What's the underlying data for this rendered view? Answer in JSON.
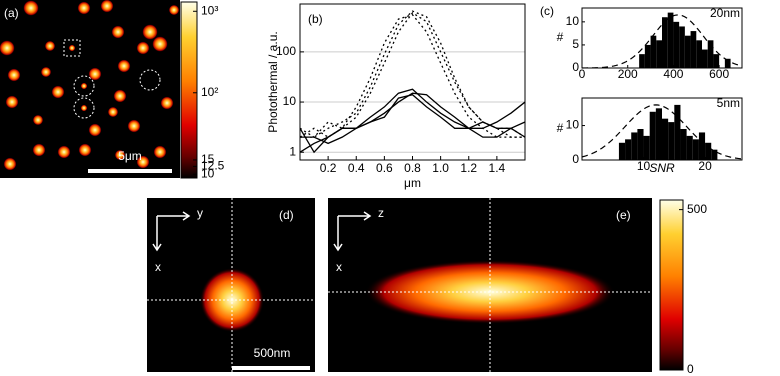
{
  "chart_data": [
    {
      "type": "image",
      "label": "(a)",
      "scalebar_label": "5μm",
      "colorbar": {
        "scale": "log",
        "ylim": [
          9,
          1300
        ],
        "yticks": [
          {
            "value": 1000,
            "label": "10³"
          },
          {
            "value": 100,
            "label": "10²"
          },
          15,
          12.5,
          10
        ]
      }
    },
    {
      "type": "line",
      "label": "(b)",
      "y_label": "Photothermal / a.u.",
      "x_label": "μm",
      "scale": "log",
      "grid": true,
      "x": [
        0,
        0.1,
        0.2,
        0.3,
        0.4,
        0.5,
        0.6,
        0.7,
        0.8,
        0.9,
        1,
        1.1,
        1.2,
        1.3,
        1.4,
        1.5,
        1.6
      ],
      "xlim": [
        0,
        1.6
      ],
      "xticks": [
        0.2,
        0.4,
        0.6,
        0.8,
        {
          "value": 1,
          "label": "1.0"
        },
        1.2,
        1.4
      ],
      "ylim": [
        0.7,
        900
      ],
      "yticks": [
        1,
        10,
        100
      ],
      "series": [
        {
          "style": "dotted",
          "color": "#000000",
          "values": [
            2,
            3,
            2,
            3,
            5,
            15,
            60,
            250,
            600,
            400,
            100,
            25,
            8,
            4,
            3,
            2,
            2
          ]
        },
        {
          "style": "dotted",
          "color": "#000000",
          "values": [
            3,
            2,
            4,
            3,
            8,
            30,
            150,
            450,
            550,
            250,
            60,
            15,
            5,
            3,
            2,
            2,
            2
          ]
        },
        {
          "style": "dotted",
          "color": "#000000",
          "values": [
            2,
            2,
            3,
            4,
            6,
            20,
            90,
            350,
            650,
            500,
            150,
            30,
            8,
            4,
            3,
            3,
            2
          ]
        },
        {
          "style": "solid",
          "color": "#000000",
          "values": [
            3,
            1,
            2,
            3,
            3,
            5,
            8,
            15,
            18,
            10,
            6,
            4,
            3,
            2,
            2,
            3,
            4
          ]
        },
        {
          "style": "solid",
          "color": "#000000",
          "values": [
            2,
            2,
            1.5,
            2,
            3,
            4,
            6,
            10,
            15,
            14,
            8,
            5,
            3,
            4,
            3,
            3,
            2
          ]
        },
        {
          "style": "solid",
          "color": "#000000",
          "values": [
            1,
            1.5,
            2,
            3,
            3,
            4,
            5,
            12,
            14,
            8,
            5,
            3,
            3,
            3,
            4,
            6,
            10
          ]
        }
      ]
    },
    {
      "type": "histogram",
      "label": "(c)",
      "annotation": "20nm",
      "y_label": "#",
      "color": "#000000",
      "bins": [
        250,
        275,
        300,
        325,
        350,
        375,
        400,
        425,
        450,
        475,
        500,
        525,
        550,
        575,
        600,
        625,
        650
      ],
      "values": [
        3,
        5,
        7,
        6,
        11,
        12,
        10,
        9,
        7,
        8,
        6,
        4,
        6,
        3,
        0,
        2
      ],
      "xlim": [
        0,
        700
      ],
      "xticks": [
        0,
        200,
        400,
        600
      ],
      "ylim": [
        0,
        13
      ],
      "yticks": [
        0,
        5,
        10
      ],
      "fit": {
        "mean": 420,
        "sd": 110,
        "peak": 11.5
      }
    },
    {
      "type": "histogram",
      "annotation": "5nm",
      "y_label": "#",
      "x_label": "SNR",
      "color": "#000000",
      "bins": [
        6,
        7,
        8,
        9,
        10,
        11,
        12,
        13,
        14,
        15,
        16,
        17,
        18,
        19,
        20,
        21,
        22
      ],
      "values": [
        5,
        6,
        8,
        9,
        7,
        14,
        15,
        12,
        11,
        16,
        9,
        7,
        6,
        8,
        5,
        3
      ],
      "xlim": [
        0,
        26
      ],
      "xticks": [
        10,
        20
      ],
      "ylim": [
        0,
        18
      ],
      "yticks": [
        0,
        10
      ],
      "fit": {
        "mean": 12,
        "sd": 5,
        "peak": 16
      }
    },
    {
      "type": "image",
      "label": "(d)",
      "axes": [
        "y",
        "x"
      ],
      "scalebar_label": "500nm"
    },
    {
      "type": "image",
      "label": "(e)",
      "axes": [
        "z",
        "x"
      ],
      "colorbar": {
        "scale": "linear",
        "ylim": [
          0,
          530
        ],
        "yticks": [
          500,
          0
        ]
      }
    }
  ]
}
